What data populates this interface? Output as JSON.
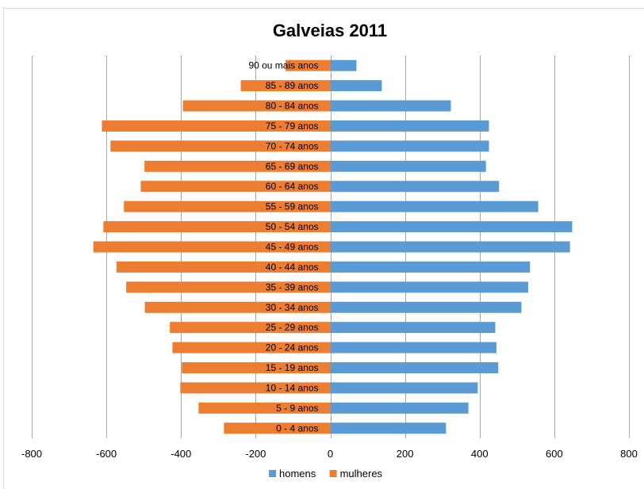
{
  "chart_data": {
    "type": "bar",
    "orientation": "horizontal",
    "title": "Galveias 2011",
    "categories": [
      "0 - 4 anos",
      "5 - 9 anos",
      "10 - 14 anos",
      "15 - 19 anos",
      "20 - 24 anos",
      "25 - 29 anos",
      "30 - 34 anos",
      "35 - 39 anos",
      "40 - 44 anos",
      "45 - 49 anos",
      "50 - 54 anos",
      "55 - 59 anos",
      "60 - 64 anos",
      "65 - 69 anos",
      "70 - 74 anos",
      "75 - 79 anos",
      "80 - 84 anos",
      "85 - 89 anos",
      "90 ou mais anos"
    ],
    "series": [
      {
        "name": "homens",
        "color": "#5B9BD5",
        "values": [
          310,
          370,
          395,
          450,
          445,
          442,
          512,
          530,
          535,
          642,
          648,
          557,
          452,
          417,
          425,
          425,
          323,
          138,
          70
        ]
      },
      {
        "name": "mulheres",
        "color": "#ED7D31",
        "values": [
          -285,
          -353,
          -402,
          -398,
          -423,
          -430,
          -497,
          -547,
          -573,
          -635,
          -608,
          -553,
          -508,
          -498,
          -589,
          -612,
          -395,
          -240,
          -120
        ]
      }
    ],
    "xlim": [
      -800,
      800
    ],
    "xticks": [
      "-800",
      "-600",
      "-400",
      "-200",
      "0",
      "200",
      "400",
      "600",
      "800"
    ],
    "xtick_values": [
      -800,
      -600,
      -400,
      -200,
      0,
      200,
      400,
      600,
      800
    ],
    "grid": true,
    "legend_position": "bottom"
  }
}
